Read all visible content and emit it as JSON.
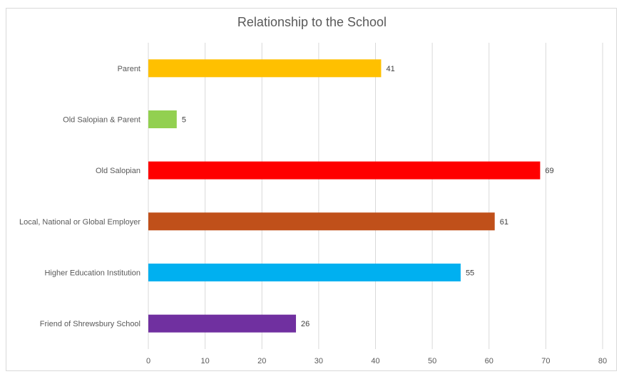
{
  "chart_data": {
    "type": "bar",
    "orientation": "horizontal",
    "title": "Relationship to the School",
    "categories": [
      "Parent",
      "Old Salopian & Parent",
      "Old Salopian",
      "Local, National or Global Employer",
      "Higher Education Institution",
      "Friend of Shrewsbury School"
    ],
    "values": [
      41,
      5,
      69,
      61,
      55,
      26
    ],
    "colors": [
      "#FFC000",
      "#92D050",
      "#FF0000",
      "#C0501A",
      "#00B0F0",
      "#7030A0"
    ],
    "xlim": [
      0,
      80
    ],
    "xticks": [
      "0",
      "10",
      "20",
      "30",
      "40",
      "50",
      "60",
      "70",
      "80"
    ],
    "grid": true,
    "data_labels": true,
    "legend": "none"
  }
}
